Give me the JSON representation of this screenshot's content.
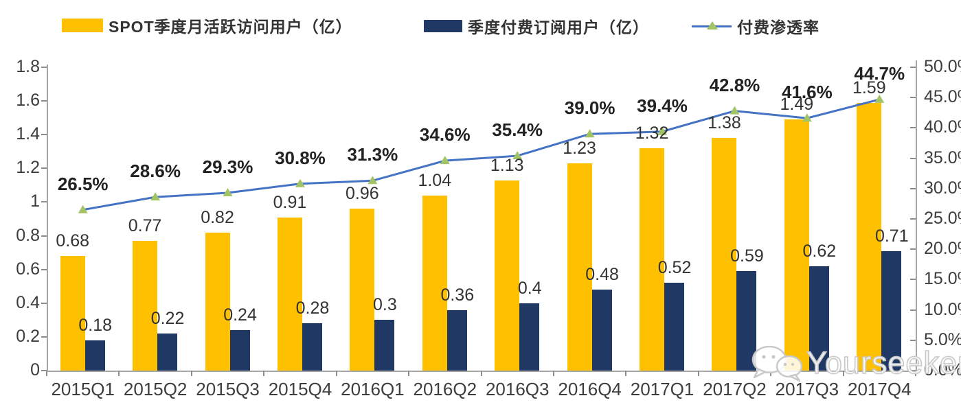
{
  "legend": [
    {
      "label": "SPOT季度月活跃访问用户（亿）",
      "swatch": "bar",
      "color": "#FFC000"
    },
    {
      "label": "季度付费订阅用户（亿）",
      "swatch": "bar",
      "color": "#1F3864"
    },
    {
      "label": "付费渗透率",
      "swatch": "line",
      "color": "#4472C4",
      "marker_color": "#A2C465"
    }
  ],
  "watermark": {
    "text": "Yourseeker",
    "icon": "wechat-bubbles-icon"
  },
  "chart_data": {
    "type": "bar+line combo",
    "categories": [
      "2015Q1",
      "2015Q2",
      "2015Q3",
      "2015Q4",
      "2016Q1",
      "2016Q2",
      "2016Q3",
      "2016Q4",
      "2017Q1",
      "2017Q2",
      "2017Q3",
      "2017Q4"
    ],
    "series": [
      {
        "name": "SPOT季度月活跃访问用户（亿）",
        "type": "bar",
        "color": "#FFC000",
        "axis": "left",
        "values": [
          0.68,
          0.77,
          0.82,
          0.91,
          0.96,
          1.04,
          1.13,
          1.23,
          1.32,
          1.38,
          1.49,
          1.59
        ],
        "labels": [
          "0.68",
          "0.77",
          "0.82",
          "0.91",
          "0.96",
          "1.04",
          "1.13",
          "1.23",
          "1.32",
          "1.38",
          "1.49",
          "1.59"
        ]
      },
      {
        "name": "季度付费订阅用户（亿）",
        "type": "bar",
        "color": "#1F3864",
        "axis": "left",
        "values": [
          0.18,
          0.22,
          0.24,
          0.28,
          0.3,
          0.36,
          0.4,
          0.48,
          0.52,
          0.59,
          0.62,
          0.71
        ],
        "labels": [
          "0.18",
          "0.22",
          "0.24",
          "0.28",
          "0.3",
          "0.36",
          "0.4",
          "0.48",
          "0.52",
          "0.59",
          "0.62",
          "0.71"
        ]
      },
      {
        "name": "付费渗透率",
        "type": "line",
        "color": "#4472C4",
        "marker": "triangle",
        "marker_color": "#A2C465",
        "axis": "right",
        "values": [
          26.5,
          28.6,
          29.3,
          30.8,
          31.3,
          34.6,
          35.4,
          39.0,
          39.4,
          42.8,
          41.6,
          44.7
        ],
        "labels": [
          "26.5%",
          "28.6%",
          "29.3%",
          "30.8%",
          "31.3%",
          "34.6%",
          "35.4%",
          "39.0%",
          "39.4%",
          "42.8%",
          "41.6%",
          "44.7%"
        ]
      }
    ],
    "left_axis": {
      "min": 0,
      "max": 1.8,
      "step": 0.2,
      "ticks": [
        "0",
        "0.2",
        "0.4",
        "0.6",
        "0.8",
        "1",
        "1.2",
        "1.4",
        "1.6",
        "1.8"
      ]
    },
    "right_axis": {
      "min": 0,
      "max": 50,
      "step": 5,
      "ticks": [
        "0.0%",
        "5.0%",
        "10.0%",
        "15.0%",
        "20.0%",
        "25.0%",
        "30.0%",
        "35.0%",
        "40.0%",
        "45.0%",
        "50.0%"
      ]
    },
    "grid": false,
    "legend_position": "top"
  }
}
